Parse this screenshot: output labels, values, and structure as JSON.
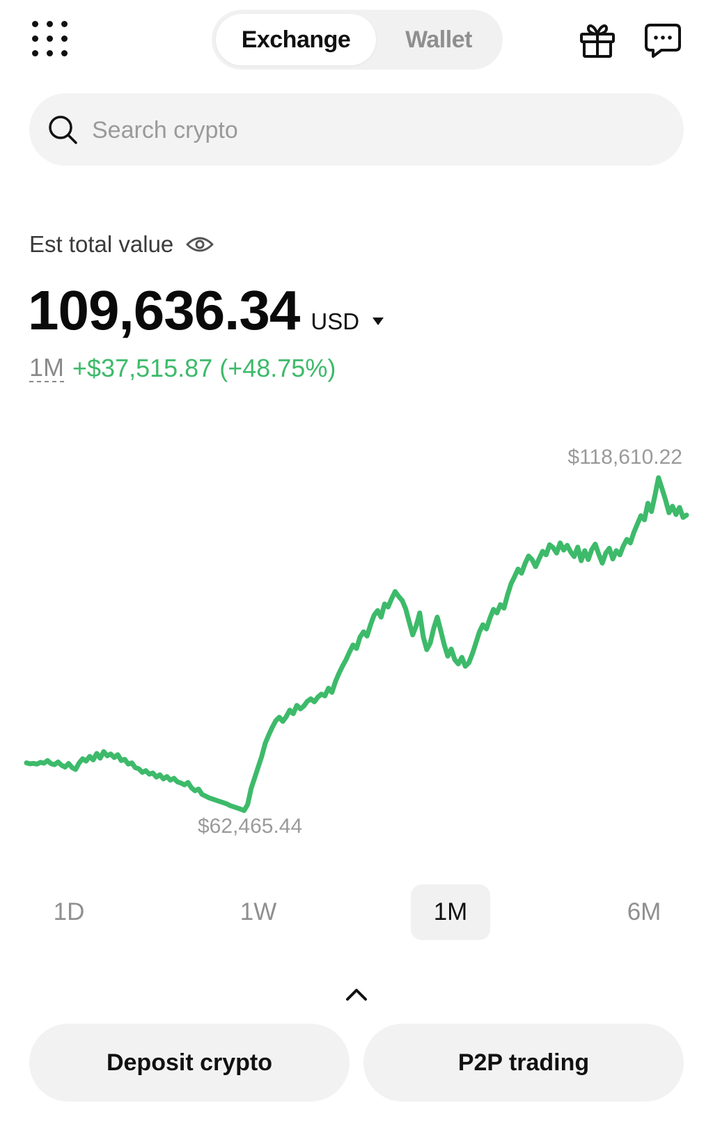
{
  "header": {
    "tabs": [
      {
        "label": "Exchange",
        "active": true
      },
      {
        "label": "Wallet",
        "active": false
      }
    ],
    "icons": [
      "apps-grid-icon",
      "gift-icon",
      "chat-icon"
    ]
  },
  "search": {
    "placeholder": "Search crypto",
    "value": ""
  },
  "portfolio": {
    "label": "Est total value",
    "total": "109,636.34",
    "currency": "USD",
    "period": "1M",
    "change": "+$37,515.87 (+48.75%)"
  },
  "chart_data": {
    "type": "line",
    "high_label": "$118,610.22",
    "low_label": "$62,465.44",
    "high": 118610.22,
    "low": 62465.44,
    "color": "#3dba6a",
    "values": [
      70510,
      70350,
      70420,
      70300,
      70600,
      70450,
      70900,
      70380,
      70200,
      70650,
      70100,
      69800,
      70400,
      69700,
      69400,
      70500,
      71200,
      70800,
      71600,
      71000,
      72100,
      71300,
      72400,
      71700,
      72000,
      71400,
      71900,
      70900,
      71100,
      70300,
      70500,
      69700,
      69500,
      68900,
      69200,
      68600,
      68800,
      68100,
      68500,
      67800,
      68200,
      67600,
      67900,
      67300,
      67100,
      66800,
      67200,
      66300,
      65800,
      66100,
      65200,
      64900,
      64600,
      64400,
      64200,
      64000,
      63800,
      63600,
      63300,
      63100,
      62900,
      62700,
      62465,
      63500,
      66200,
      68000,
      69800,
      71600,
      73800,
      75200,
      76500,
      77600,
      78200,
      77500,
      78300,
      79400,
      78800,
      80200,
      79600,
      80100,
      80900,
      81300,
      80800,
      81600,
      82100,
      81800,
      83100,
      82400,
      84200,
      85600,
      86800,
      87900,
      89200,
      90400,
      89800,
      91700,
      92600,
      91900,
      93800,
      95400,
      96200,
      95100,
      97300,
      96800,
      98200,
      99400,
      98600,
      97900,
      96500,
      94300,
      92100,
      93600,
      95800,
      91800,
      89600,
      90700,
      93200,
      95100,
      92800,
      90400,
      88500,
      89700,
      87900,
      87200,
      88300,
      86800,
      87400,
      88900,
      90700,
      92600,
      93800,
      93100,
      94900,
      96400,
      95800,
      97200,
      96600,
      98800,
      100700,
      101900,
      103200,
      102500,
      104100,
      105400,
      104800,
      103600,
      104900,
      106200,
      105600,
      107300,
      106800,
      105900,
      107600,
      106400,
      107200,
      106100,
      105300,
      106900,
      104600,
      106300,
      104800,
      106500,
      107400,
      105700,
      104200,
      105900,
      106700,
      104900,
      106300,
      105600,
      107100,
      108200,
      107600,
      109400,
      110800,
      112200,
      111500,
      114300,
      112900,
      115600,
      118610,
      116800,
      114900,
      112700,
      113800,
      112400,
      113600,
      111900,
      112300
    ]
  },
  "ranges": [
    {
      "label": "1D",
      "active": false
    },
    {
      "label": "1W",
      "active": false
    },
    {
      "label": "1M",
      "active": true
    },
    {
      "label": "6M",
      "active": false
    }
  ],
  "actions": {
    "deposit_label": "Deposit crypto",
    "p2p_label": "P2P trading"
  }
}
